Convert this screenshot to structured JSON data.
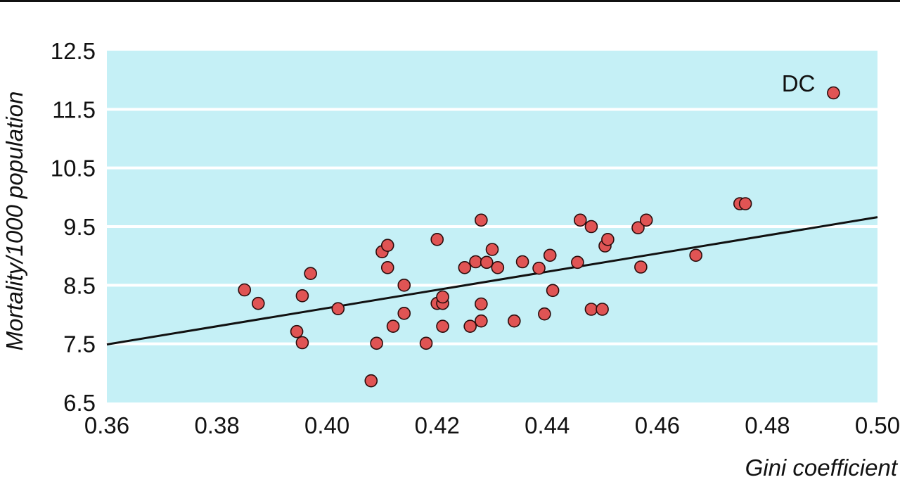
{
  "chart_data": {
    "type": "scatter",
    "title": "",
    "xlabel": "Gini coefficient",
    "ylabel": "Mortality/1000 population",
    "xlim": [
      0.36,
      0.5
    ],
    "ylim": [
      6.5,
      12.5
    ],
    "xticks": [
      0.36,
      0.38,
      0.4,
      0.42,
      0.44,
      0.46,
      0.48,
      0.5
    ],
    "xtick_labels": [
      "0.36",
      "0.38",
      "0.40",
      "0.42",
      "0.44",
      "0.46",
      "0.48",
      "0.50"
    ],
    "yticks": [
      6.5,
      7.5,
      8.5,
      9.5,
      10.5,
      11.5,
      12.5
    ],
    "ytick_labels": [
      "6.5",
      "7.5",
      "8.5",
      "9.5",
      "10.5",
      "11.5",
      "12.5"
    ],
    "grid": "horizontal",
    "colors": {
      "plot_background": "#c5f0f6",
      "gridline": "#ffffff",
      "marker_fill": "#e05454",
      "marker_stroke": "#2a0c0c",
      "trendline": "#111111"
    },
    "trendline": {
      "x": [
        0.36,
        0.5
      ],
      "y": [
        7.49,
        9.66
      ]
    },
    "series": [
      {
        "points": [
          [
            0.385,
            8.42
          ],
          [
            0.3875,
            8.19
          ],
          [
            0.3945,
            7.71
          ],
          [
            0.3955,
            8.32
          ],
          [
            0.3955,
            7.52
          ],
          [
            0.397,
            8.7
          ],
          [
            0.402,
            8.1
          ],
          [
            0.408,
            6.87
          ],
          [
            0.409,
            7.51
          ],
          [
            0.41,
            9.07
          ],
          [
            0.411,
            9.18
          ],
          [
            0.411,
            8.8
          ],
          [
            0.412,
            7.8
          ],
          [
            0.414,
            8.5
          ],
          [
            0.414,
            8.02
          ],
          [
            0.418,
            7.51
          ],
          [
            0.42,
            8.19
          ],
          [
            0.42,
            9.28
          ],
          [
            0.421,
            8.19
          ],
          [
            0.421,
            8.3
          ],
          [
            0.421,
            7.8
          ],
          [
            0.425,
            8.8
          ],
          [
            0.426,
            7.8
          ],
          [
            0.427,
            8.9
          ],
          [
            0.428,
            9.61
          ],
          [
            0.428,
            8.18
          ],
          [
            0.428,
            7.89
          ],
          [
            0.429,
            8.89
          ],
          [
            0.43,
            9.11
          ],
          [
            0.431,
            8.8
          ],
          [
            0.434,
            7.89
          ],
          [
            0.4355,
            8.9
          ],
          [
            0.4385,
            8.79
          ],
          [
            0.4395,
            8.01
          ],
          [
            0.4405,
            9.01
          ],
          [
            0.441,
            8.41
          ],
          [
            0.4455,
            8.89
          ],
          [
            0.446,
            9.61
          ],
          [
            0.448,
            9.5
          ],
          [
            0.448,
            8.09
          ],
          [
            0.45,
            8.09
          ],
          [
            0.4505,
            9.17
          ],
          [
            0.451,
            9.28
          ],
          [
            0.4565,
            9.48
          ],
          [
            0.457,
            8.81
          ],
          [
            0.458,
            9.61
          ],
          [
            0.467,
            9.01
          ],
          [
            0.475,
            9.89
          ],
          [
            0.476,
            9.89
          ],
          [
            0.492,
            11.78
          ]
        ]
      }
    ],
    "annotations": [
      {
        "text": "DC",
        "x": 0.492,
        "y": 11.78
      }
    ]
  }
}
